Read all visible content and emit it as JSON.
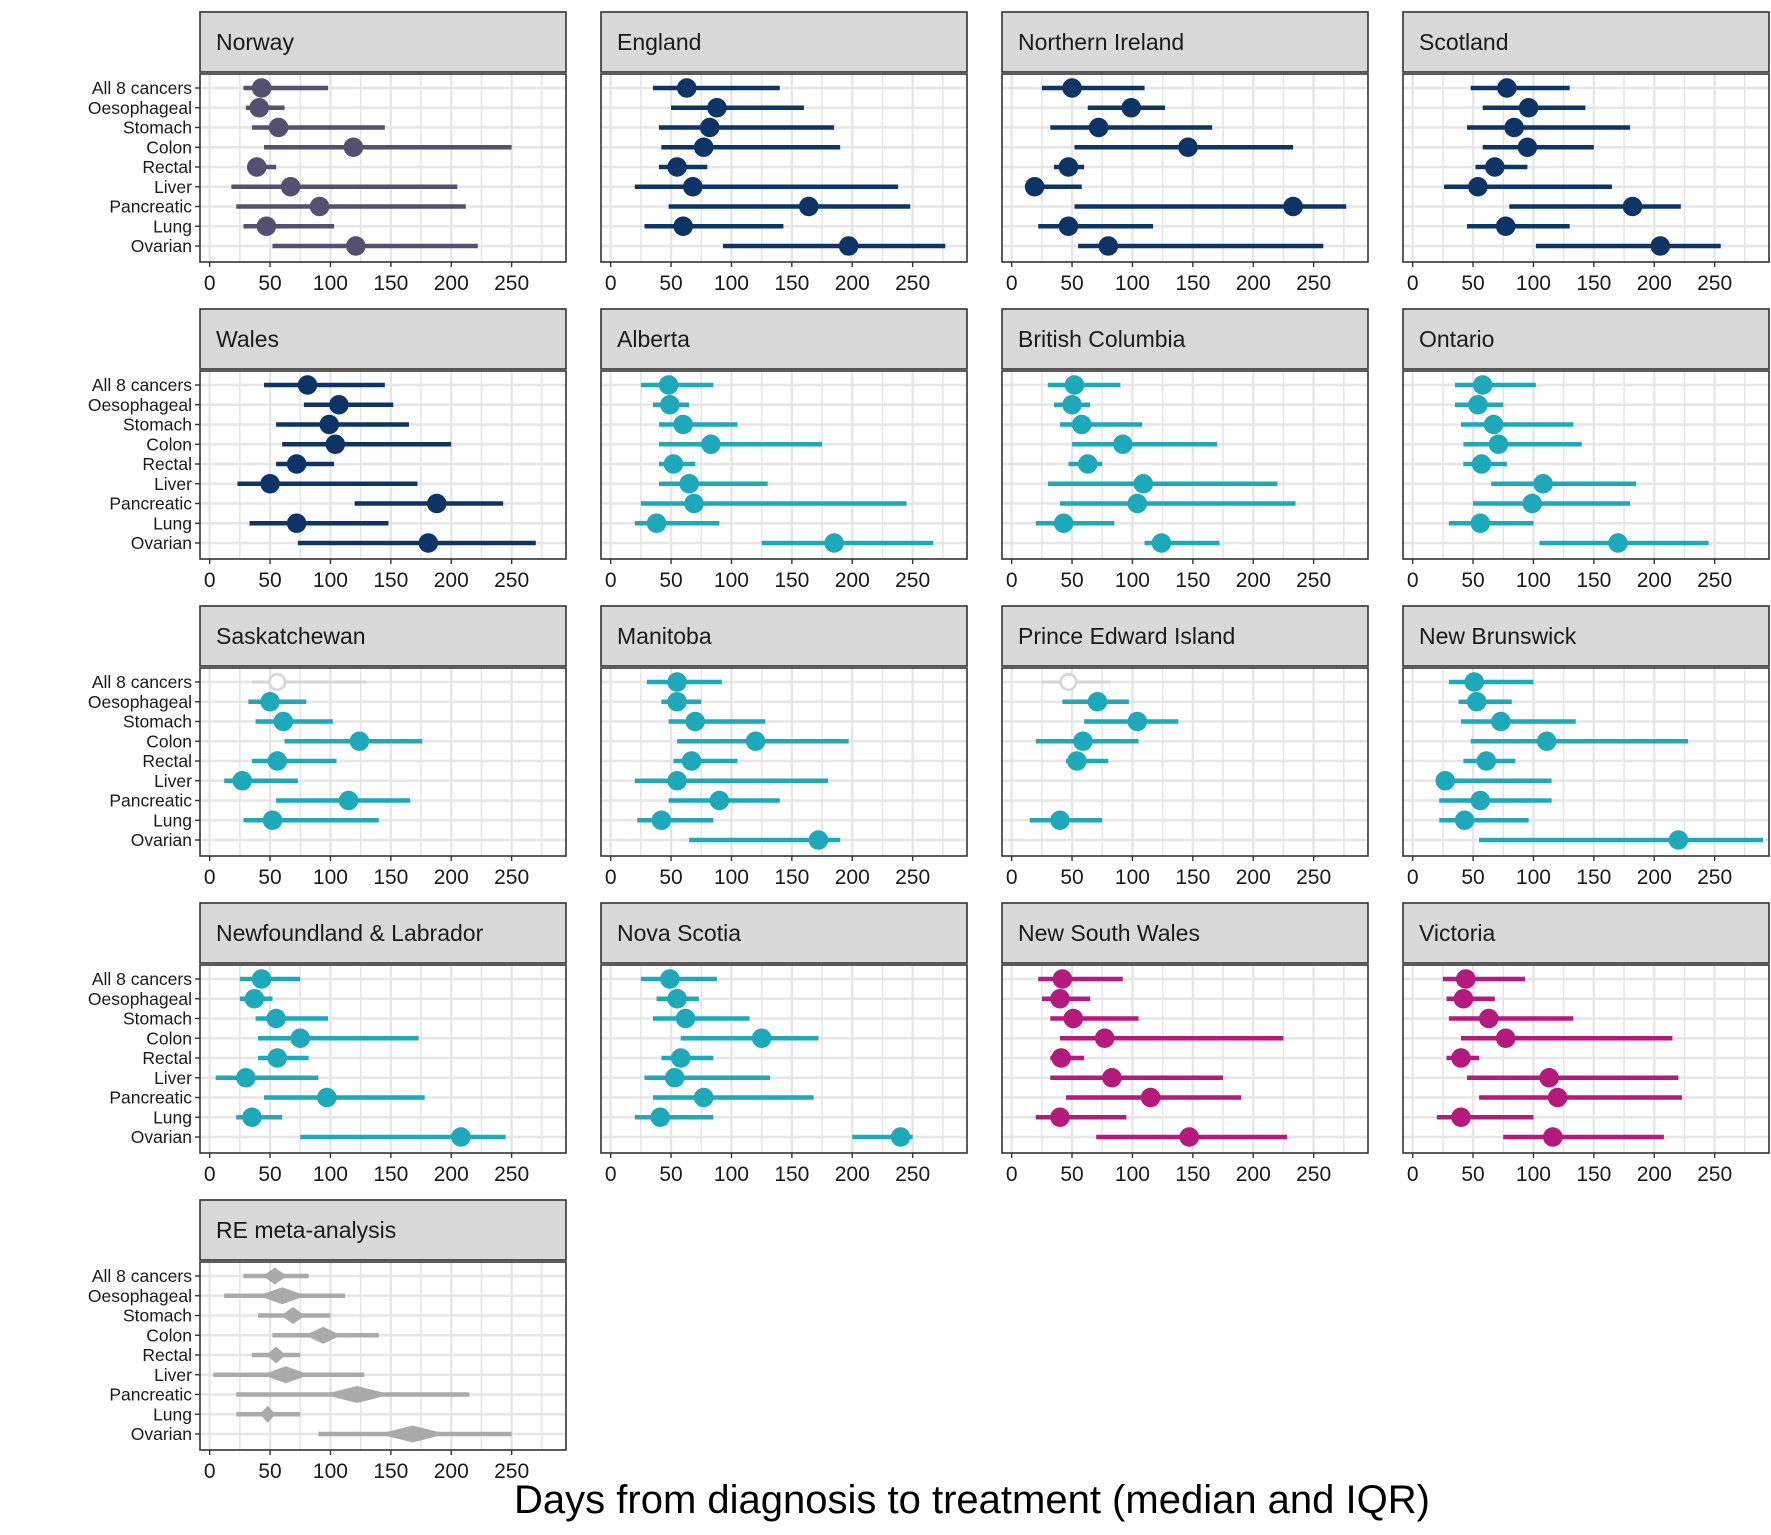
{
  "chart_data": {
    "type": "faceted-pointrange",
    "xlabel": "Days from diagnosis to treatment (median and IQR)",
    "ylabel": "",
    "x_ticks": [
      0,
      50,
      100,
      150,
      200,
      250
    ],
    "categories": [
      "All 8 cancers",
      "Oesophageal",
      "Stomach",
      "Colon",
      "Rectal",
      "Liver",
      "Pancreatic",
      "Lung",
      "Ovarian"
    ],
    "colors": {
      "norway": "#54506f",
      "uk": "#0d3466",
      "canada": "#1ea9ba",
      "australia": "#b5197c",
      "meta": "#aaaaaa",
      "hollow": "#d6d6d6",
      "grid": "#e6e6e6",
      "strip": "#d9d9d9",
      "border": "#333333"
    },
    "facets": [
      {
        "title": "Norway",
        "xlim": [
          -8,
          295
        ],
        "color": "#54506f",
        "median": [
          43,
          41,
          57,
          119,
          39,
          67,
          91,
          47,
          121
        ],
        "q1": [
          28,
          30,
          35,
          45,
          32,
          18,
          22,
          28,
          52
        ],
        "q3": [
          98,
          62,
          145,
          250,
          55,
          205,
          212,
          103,
          222
        ]
      },
      {
        "title": "England",
        "xlim": [
          -8,
          295
        ],
        "color": "#0d3466",
        "median": [
          63,
          88,
          82,
          77,
          55,
          68,
          164,
          60,
          197
        ],
        "q1": [
          35,
          50,
          40,
          42,
          40,
          20,
          48,
          28,
          93
        ],
        "q3": [
          140,
          160,
          185,
          190,
          80,
          238,
          248,
          143,
          277
        ]
      },
      {
        "title": "Northern Ireland",
        "xlim": [
          -8,
          295
        ],
        "color": "#0d3466",
        "median": [
          50,
          99,
          72,
          146,
          47,
          19,
          233,
          47,
          80
        ],
        "q1": [
          25,
          63,
          32,
          52,
          35,
          13,
          52,
          22,
          55
        ],
        "q3": [
          110,
          127,
          166,
          233,
          60,
          58,
          277,
          117,
          258
        ]
      },
      {
        "title": "Scotland",
        "xlim": [
          -8,
          295
        ],
        "color": "#0d3466",
        "median": [
          78,
          96,
          84,
          95,
          68,
          54,
          182,
          77,
          205
        ],
        "q1": [
          48,
          58,
          45,
          58,
          52,
          26,
          80,
          45,
          102
        ],
        "q3": [
          130,
          143,
          180,
          150,
          95,
          165,
          222,
          130,
          255
        ]
      },
      {
        "title": "Wales",
        "xlim": [
          -8,
          295
        ],
        "color": "#0d3466",
        "median": [
          81,
          107,
          99,
          104,
          72,
          50,
          188,
          72,
          181
        ],
        "q1": [
          45,
          78,
          55,
          60,
          55,
          23,
          120,
          33,
          73
        ],
        "q3": [
          145,
          152,
          165,
          200,
          103,
          172,
          243,
          148,
          270
        ]
      },
      {
        "title": "Alberta",
        "xlim": [
          -8,
          295
        ],
        "color": "#1ea9ba",
        "median": [
          48,
          49,
          60,
          83,
          52,
          65,
          69,
          38,
          185
        ],
        "q1": [
          25,
          35,
          40,
          40,
          40,
          40,
          25,
          20,
          125
        ],
        "q3": [
          85,
          65,
          105,
          175,
          70,
          130,
          245,
          90,
          267
        ]
      },
      {
        "title": "British Columbia",
        "xlim": [
          -8,
          295
        ],
        "color": "#1ea9ba",
        "median": [
          52,
          50,
          58,
          92,
          63,
          109,
          104,
          43,
          124
        ],
        "q1": [
          30,
          35,
          40,
          50,
          47,
          30,
          40,
          20,
          110
        ],
        "q3": [
          90,
          65,
          108,
          170,
          75,
          220,
          235,
          85,
          172
        ]
      },
      {
        "title": "Ontario",
        "xlim": [
          -8,
          295
        ],
        "color": "#1ea9ba",
        "median": [
          58,
          54,
          67,
          71,
          57,
          108,
          99,
          56,
          170
        ],
        "q1": [
          35,
          35,
          40,
          42,
          42,
          65,
          50,
          30,
          105
        ],
        "q3": [
          102,
          75,
          133,
          140,
          78,
          185,
          180,
          100,
          245
        ]
      },
      {
        "title": "Saskatchewan",
        "xlim": [
          -8,
          295
        ],
        "color": "#1ea9ba",
        "median": [
          56,
          50,
          61,
          124,
          56,
          27,
          115,
          52,
          0
        ],
        "q1": [
          35,
          32,
          38,
          62,
          35,
          12,
          55,
          28,
          0
        ],
        "q3": [
          130,
          80,
          102,
          176,
          105,
          73,
          166,
          140,
          0
        ],
        "present": [
          1,
          1,
          1,
          1,
          1,
          1,
          1,
          1,
          0
        ],
        "hollow": [
          1,
          0,
          0,
          0,
          0,
          0,
          0,
          0,
          0
        ]
      },
      {
        "title": "Manitoba",
        "xlim": [
          -8,
          295
        ],
        "color": "#1ea9ba",
        "median": [
          55,
          55,
          70,
          120,
          67,
          55,
          90,
          42,
          172
        ],
        "q1": [
          30,
          42,
          48,
          55,
          52,
          20,
          48,
          22,
          65
        ],
        "q3": [
          92,
          75,
          128,
          197,
          105,
          180,
          140,
          85,
          190
        ]
      },
      {
        "title": "Prince Edward Island",
        "xlim": [
          -8,
          295
        ],
        "color": "#1ea9ba",
        "median": [
          47,
          71,
          104,
          59,
          54,
          0,
          0,
          40,
          0
        ],
        "q1": [
          25,
          42,
          60,
          20,
          45,
          0,
          0,
          15,
          0
        ],
        "q3": [
          82,
          97,
          138,
          105,
          80,
          0,
          0,
          75,
          0
        ],
        "present": [
          1,
          1,
          1,
          1,
          1,
          0,
          0,
          1,
          0
        ],
        "hollow": [
          1,
          0,
          0,
          0,
          0,
          0,
          0,
          0,
          0
        ]
      },
      {
        "title": "New Brunswick",
        "xlim": [
          -8,
          295
        ],
        "color": "#1ea9ba",
        "median": [
          51,
          53,
          73,
          111,
          61,
          27,
          56,
          43,
          220
        ],
        "q1": [
          30,
          38,
          40,
          48,
          42,
          20,
          22,
          22,
          55
        ],
        "q3": [
          100,
          82,
          135,
          228,
          85,
          115,
          115,
          96,
          290
        ]
      },
      {
        "title": "Newfoundland & Labrador",
        "xlim": [
          -8,
          295
        ],
        "color": "#1ea9ba",
        "median": [
          43,
          37,
          55,
          75,
          56,
          30,
          97,
          35,
          208
        ],
        "q1": [
          25,
          25,
          38,
          40,
          40,
          5,
          45,
          22,
          75
        ],
        "q3": [
          75,
          52,
          98,
          173,
          82,
          90,
          178,
          60,
          245
        ]
      },
      {
        "title": "Nova Scotia",
        "xlim": [
          -8,
          295
        ],
        "color": "#1ea9ba",
        "median": [
          49,
          55,
          62,
          125,
          58,
          53,
          77,
          41,
          240
        ],
        "q1": [
          25,
          38,
          35,
          58,
          42,
          28,
          35,
          20,
          200
        ],
        "q3": [
          88,
          73,
          115,
          172,
          85,
          132,
          168,
          85,
          250
        ]
      },
      {
        "title": "New South Wales",
        "xlim": [
          -8,
          295
        ],
        "color": "#b5197c",
        "median": [
          42,
          40,
          51,
          77,
          41,
          83,
          115,
          40,
          147
        ],
        "q1": [
          22,
          25,
          32,
          40,
          32,
          32,
          45,
          20,
          70
        ],
        "q3": [
          92,
          65,
          105,
          225,
          60,
          175,
          190,
          95,
          228
        ]
      },
      {
        "title": "Victoria",
        "xlim": [
          -8,
          295
        ],
        "color": "#b5197c",
        "median": [
          44,
          42,
          63,
          77,
          40,
          113,
          120,
          40,
          116
        ],
        "q1": [
          25,
          28,
          30,
          40,
          28,
          45,
          55,
          20,
          75
        ],
        "q3": [
          93,
          68,
          133,
          215,
          55,
          220,
          223,
          100,
          208
        ]
      },
      {
        "title": "RE meta-analysis",
        "xlim": [
          -8,
          295
        ],
        "color": "#aaaaaa",
        "diamond": true,
        "median": [
          54,
          60,
          69,
          94,
          55,
          63,
          122,
          48,
          168
        ],
        "q1": [
          28,
          12,
          40,
          52,
          35,
          3,
          22,
          22,
          90
        ],
        "q3": [
          82,
          112,
          100,
          140,
          75,
          128,
          215,
          75,
          250
        ],
        "ci_half": [
          10,
          20,
          10,
          15,
          8,
          20,
          28,
          6,
          28
        ]
      }
    ]
  }
}
